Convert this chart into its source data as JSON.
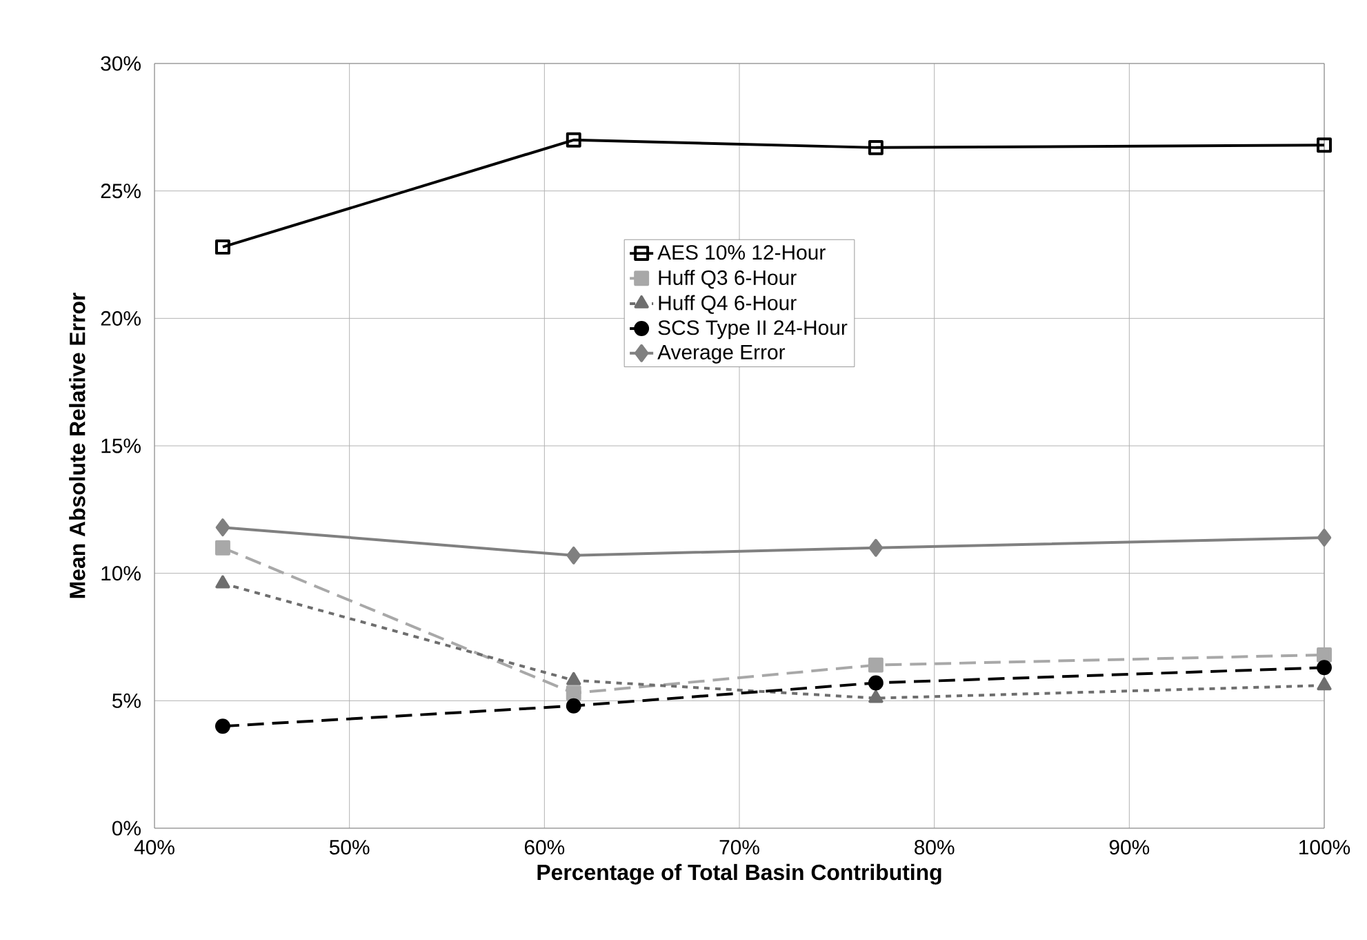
{
  "chart_data": {
    "type": "line",
    "xlabel": "Percentage of Total Basin Contributing",
    "ylabel": "Mean Absolute Relative Error",
    "x": [
      43.5,
      61.5,
      77.0,
      100
    ],
    "series": [
      {
        "name": "AES 10% 12-Hour",
        "color": "#000000",
        "marker": "square",
        "line_style": "solid",
        "values": [
          22.8,
          27.0,
          26.7,
          26.8
        ]
      },
      {
        "name": "Huff Q3 6-Hour",
        "color": "#a8a8a8",
        "marker": "square",
        "line_style": "dashed",
        "values": [
          11.0,
          5.3,
          6.4,
          6.8
        ]
      },
      {
        "name": "Huff Q4 6-Hour",
        "color": "#6e6e6e",
        "marker": "triangle",
        "line_style": "dotted",
        "values": [
          9.6,
          5.8,
          5.1,
          5.6
        ]
      },
      {
        "name": "SCS Type II 24-Hour",
        "color": "#000000",
        "marker": "circle",
        "line_style": "dashed",
        "values": [
          4.0,
          4.8,
          5.7,
          6.3
        ]
      },
      {
        "name": "Average Error",
        "color": "#808080",
        "marker": "diamond",
        "line_style": "solid",
        "values": [
          11.8,
          10.7,
          11.0,
          11.4
        ]
      }
    ],
    "xlim": [
      40,
      100
    ],
    "ylim": [
      0,
      30
    ],
    "xticks": [
      {
        "value": 40,
        "label": "40%"
      },
      {
        "value": 50,
        "label": "50%"
      },
      {
        "value": 60,
        "label": "60%"
      },
      {
        "value": 70,
        "label": "70%"
      },
      {
        "value": 80,
        "label": "80%"
      },
      {
        "value": 90,
        "label": "90%"
      },
      {
        "value": 100,
        "label": "100%"
      }
    ],
    "yticks": [
      {
        "value": 0,
        "label": "0%"
      },
      {
        "value": 5,
        "label": "5%"
      },
      {
        "value": 10,
        "label": "10%"
      },
      {
        "value": 15,
        "label": "15%"
      },
      {
        "value": 20,
        "label": "20%"
      },
      {
        "value": 25,
        "label": "25%"
      },
      {
        "value": 30,
        "label": "30%"
      }
    ],
    "grid": true,
    "legend": "top"
  }
}
